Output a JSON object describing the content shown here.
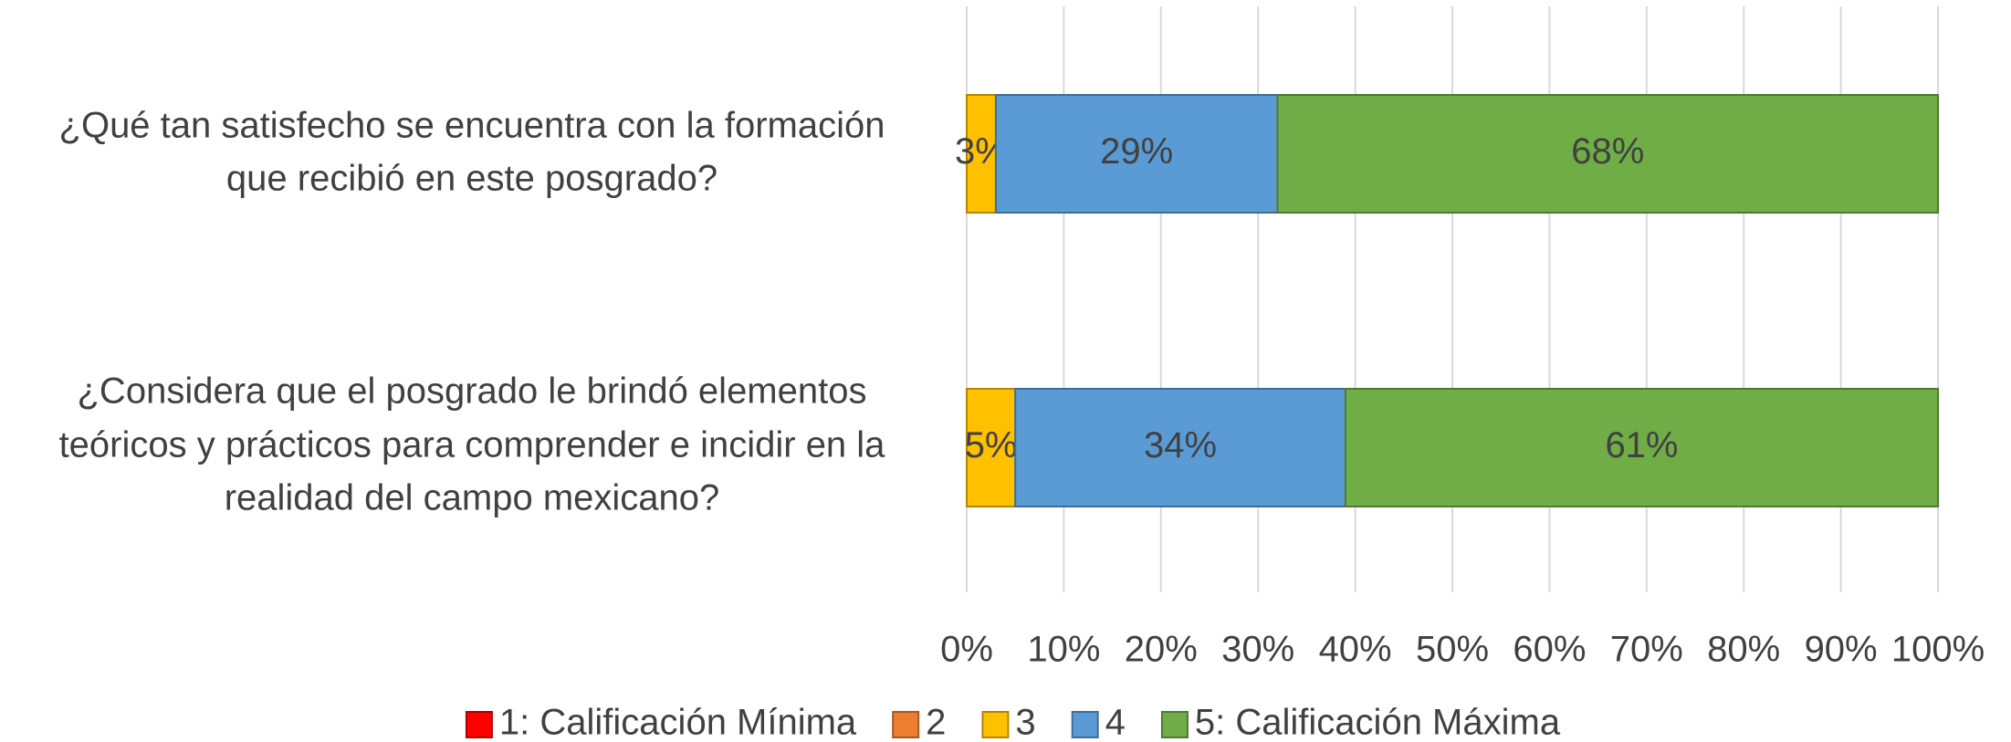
{
  "chart_data": {
    "type": "bar",
    "orientation": "horizontal",
    "stacked": true,
    "categories": [
      [
        "¿Qué tan satisfecho se encuentra con la formación",
        "que recibió en este posgrado?"
      ],
      [
        "¿Considera que el posgrado le brindó elementos",
        "teóricos y prácticos para comprender e incidir en la",
        "realidad del campo mexicano?"
      ]
    ],
    "series": [
      {
        "name": "1: Calificación Mínima",
        "color": "#ff0000",
        "values": [
          0,
          0
        ]
      },
      {
        "name": "2",
        "color": "#ed7d31",
        "values": [
          0,
          0
        ]
      },
      {
        "name": "3",
        "color": "#ffc000",
        "values": [
          3,
          5
        ],
        "value_labels": [
          "3%",
          "5%"
        ]
      },
      {
        "name": "4",
        "color": "#5b9bd5",
        "values": [
          29,
          34
        ],
        "value_labels": [
          "29%",
          "34%"
        ]
      },
      {
        "name": "5: Calificación Máxima",
        "color": "#70ad47",
        "values": [
          68,
          61
        ],
        "value_labels": [
          "68%",
          "61%"
        ]
      }
    ],
    "xlim": [
      0,
      100
    ],
    "xticks": [
      {
        "value": 0,
        "label": "0%"
      },
      {
        "value": 10,
        "label": "10%"
      },
      {
        "value": 20,
        "label": "20%"
      },
      {
        "value": 30,
        "label": "30%"
      },
      {
        "value": 40,
        "label": "40%"
      },
      {
        "value": 50,
        "label": "50%"
      },
      {
        "value": 60,
        "label": "60%"
      },
      {
        "value": 70,
        "label": "70%"
      },
      {
        "value": 80,
        "label": "80%"
      },
      {
        "value": 90,
        "label": "90%"
      },
      {
        "value": 100,
        "label": "100%"
      }
    ],
    "grid": true,
    "legend": "bottom"
  }
}
